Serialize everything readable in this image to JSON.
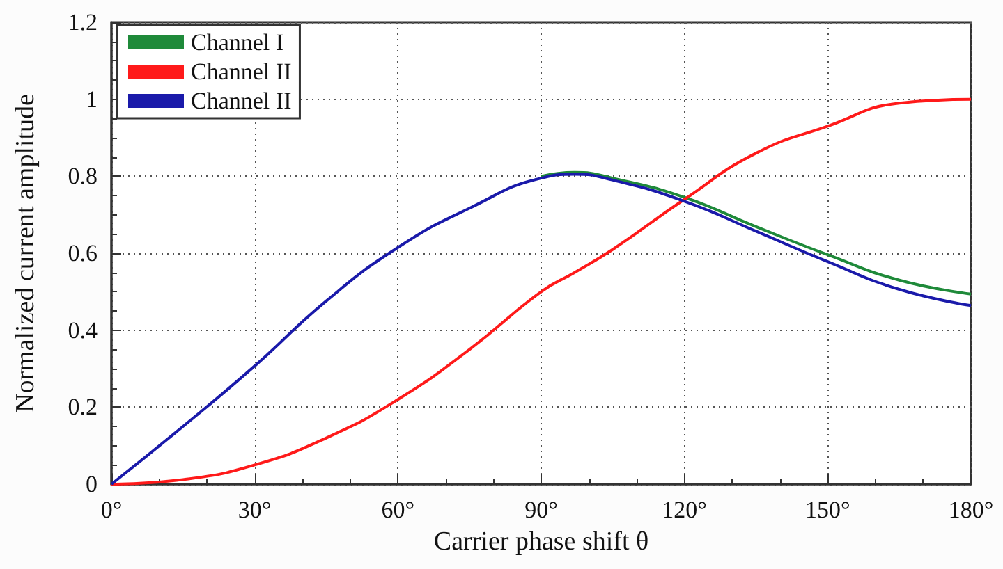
{
  "chart_data": {
    "type": "line",
    "xlabel": "Carrier phase shift θ",
    "ylabel": "Normalized current amplitude",
    "x": [
      0,
      15,
      30,
      45,
      60,
      75,
      90,
      97,
      105,
      120,
      135,
      150,
      165,
      180
    ],
    "series": [
      {
        "name": "Channel I",
        "color": "#1f8a3a",
        "values": [
          null,
          null,
          null,
          null,
          null,
          null,
          0.8,
          0.81,
          0.795,
          0.745,
          0.669,
          0.596,
          0.53,
          0.494
        ]
      },
      {
        "name": "Channel II",
        "color": "#ff1a1a",
        "values": [
          0,
          0.012,
          0.05,
          0.12,
          0.22,
          0.35,
          0.5,
          0.55,
          0.61,
          0.74,
          0.86,
          0.93,
          0.99,
          1.0
        ]
      },
      {
        "name": "Channel II",
        "color": "#1a1aaa",
        "values": [
          0,
          0.15,
          0.307,
          0.476,
          0.615,
          0.717,
          0.795,
          0.805,
          0.79,
          0.735,
          0.657,
          0.578,
          0.506,
          0.464
        ]
      }
    ],
    "xlim": [
      0,
      180
    ],
    "xticks": [
      {
        "value": 0,
        "label": "0°"
      },
      {
        "value": 30,
        "label": "30°"
      },
      {
        "value": 60,
        "label": "60°"
      },
      {
        "value": 90,
        "label": "90°"
      },
      {
        "value": 120,
        "label": "120°"
      },
      {
        "value": 150,
        "label": "150°"
      },
      {
        "value": 180,
        "label": "180°"
      }
    ],
    "ylim": [
      0,
      1.2
    ],
    "yticks": [
      0,
      0.2,
      0.4,
      0.6,
      0.8,
      1,
      1.2
    ],
    "grid": true,
    "legend": "top left",
    "marker": "none",
    "line_style": "solid"
  }
}
